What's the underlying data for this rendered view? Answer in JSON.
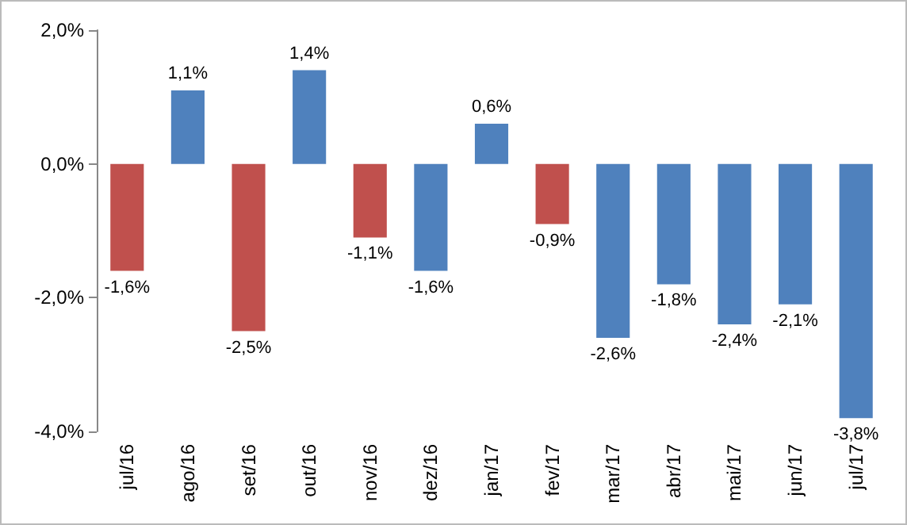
{
  "chart_data": {
    "type": "bar",
    "categories": [
      "jul/16",
      "ago/16",
      "set/16",
      "out/16",
      "nov/16",
      "dez/16",
      "jan/17",
      "fev/17",
      "mar/17",
      "abr/17",
      "mai/17",
      "jun/17",
      "jul/17"
    ],
    "values": [
      -1.6,
      1.1,
      -2.5,
      1.4,
      -1.1,
      -1.6,
      0.6,
      -0.9,
      -2.6,
      -1.8,
      -2.4,
      -2.1,
      -3.8
    ],
    "colors": [
      "#c0504d",
      "#4f81bd",
      "#c0504d",
      "#4f81bd",
      "#c0504d",
      "#4f81bd",
      "#4f81bd",
      "#c0504d",
      "#4f81bd",
      "#4f81bd",
      "#4f81bd",
      "#4f81bd",
      "#4f81bd"
    ],
    "value_labels": [
      "-1,6%",
      "1,1%",
      "-2,5%",
      "1,4%",
      "-1,1%",
      "-1,6%",
      "0,6%",
      "-0,9%",
      "-2,6%",
      "-1,8%",
      "-2,4%",
      "-2,1%",
      "-3,8%"
    ],
    "ylim": [
      -4,
      2
    ],
    "yticks": [
      {
        "value": -4,
        "label": "-4,0%"
      },
      {
        "value": -2,
        "label": "-2,0%"
      },
      {
        "value": 0,
        "label": "0,0%"
      },
      {
        "value": 2,
        "label": "2,0%"
      }
    ],
    "grid": false
  }
}
